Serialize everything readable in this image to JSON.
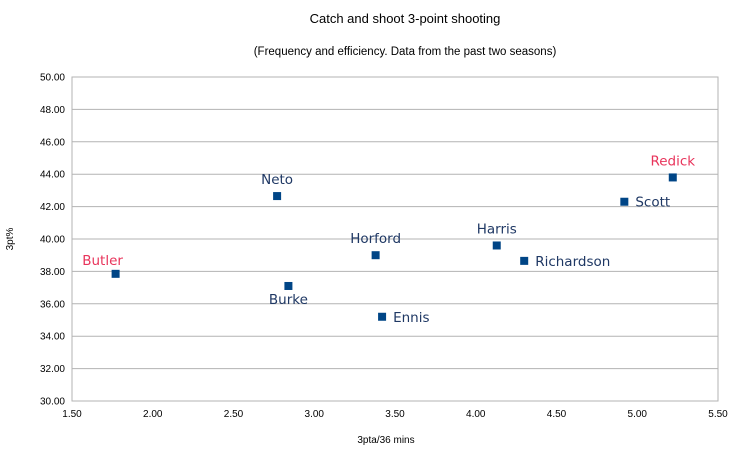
{
  "chart_data": {
    "type": "scatter",
    "title": "Catch and shoot 3-point shooting",
    "subtitle": "(Frequency and efficiency. Data from the past two seasons)",
    "xlabel": "3pta/36 mins",
    "ylabel": "3pt%",
    "xlim": [
      1.5,
      5.5
    ],
    "ylim": [
      30.0,
      50.0
    ],
    "x_ticks": [
      "1.50",
      "2.00",
      "2.50",
      "3.00",
      "3.50",
      "4.00",
      "4.50",
      "5.00",
      "5.50"
    ],
    "y_ticks": [
      "30.00",
      "32.00",
      "34.00",
      "36.00",
      "38.00",
      "40.00",
      "42.00",
      "44.00",
      "46.00",
      "48.00",
      "50.00"
    ],
    "grid": "horizontal",
    "legend": "none",
    "marker_color": "#004586",
    "default_label_color": "#1f3864",
    "highlight_label_color": "#e8345b",
    "points": [
      {
        "label": "Butler",
        "x": 1.77,
        "y": 37.85,
        "highlight": true,
        "label_pos": "above-left"
      },
      {
        "label": "Neto",
        "x": 2.77,
        "y": 42.65,
        "highlight": false,
        "label_pos": "above"
      },
      {
        "label": "Burke",
        "x": 2.84,
        "y": 37.1,
        "highlight": false,
        "label_pos": "below"
      },
      {
        "label": "Horford",
        "x": 3.38,
        "y": 39.0,
        "highlight": false,
        "label_pos": "above"
      },
      {
        "label": "Ennis",
        "x": 3.42,
        "y": 35.2,
        "highlight": false,
        "label_pos": "right"
      },
      {
        "label": "Harris",
        "x": 4.13,
        "y": 39.6,
        "highlight": false,
        "label_pos": "above"
      },
      {
        "label": "Richardson",
        "x": 4.3,
        "y": 38.65,
        "highlight": false,
        "label_pos": "right"
      },
      {
        "label": "Scott",
        "x": 4.92,
        "y": 42.3,
        "highlight": false,
        "label_pos": "right"
      },
      {
        "label": "Redick",
        "x": 5.22,
        "y": 43.8,
        "highlight": true,
        "label_pos": "above"
      }
    ]
  }
}
